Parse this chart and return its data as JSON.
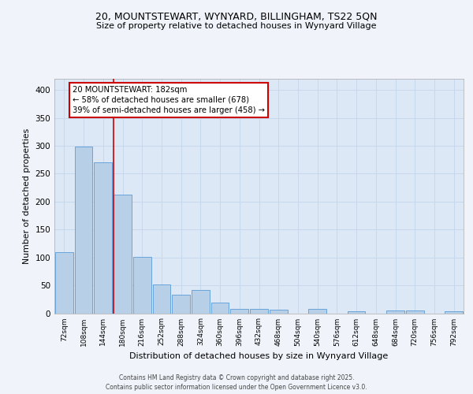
{
  "title_line1": "20, MOUNTSTEWART, WYNYARD, BILLINGHAM, TS22 5QN",
  "title_line2": "Size of property relative to detached houses in Wynyard Village",
  "xlabel": "Distribution of detached houses by size in Wynyard Village",
  "ylabel": "Number of detached properties",
  "categories": [
    "72sqm",
    "108sqm",
    "144sqm",
    "180sqm",
    "216sqm",
    "252sqm",
    "288sqm",
    "324sqm",
    "360sqm",
    "396sqm",
    "432sqm",
    "468sqm",
    "504sqm",
    "540sqm",
    "576sqm",
    "612sqm",
    "648sqm",
    "684sqm",
    "720sqm",
    "756sqm",
    "792sqm"
  ],
  "values": [
    110,
    299,
    270,
    213,
    101,
    51,
    33,
    41,
    19,
    8,
    8,
    7,
    0,
    8,
    0,
    4,
    0,
    5,
    5,
    0,
    4
  ],
  "bar_color": "#b8cfe8",
  "bar_edge_color": "#5b9bd5",
  "vline_index": 3,
  "annotation_text": "20 MOUNTSTEWART: 182sqm\n← 58% of detached houses are smaller (678)\n39% of semi-detached houses are larger (458) →",
  "annotation_box_color": "#ffffff",
  "annotation_box_edge": "#cc0000",
  "vline_color": "#cc0000",
  "grid_color": "#c8d8ec",
  "background_color": "#dce8f5",
  "fig_background": "#f0f4fa",
  "footer_text": "Contains HM Land Registry data © Crown copyright and database right 2025.\nContains public sector information licensed under the Open Government Licence v3.0.",
  "ylim": [
    0,
    420
  ],
  "yticks": [
    0,
    50,
    100,
    150,
    200,
    250,
    300,
    350,
    400
  ]
}
